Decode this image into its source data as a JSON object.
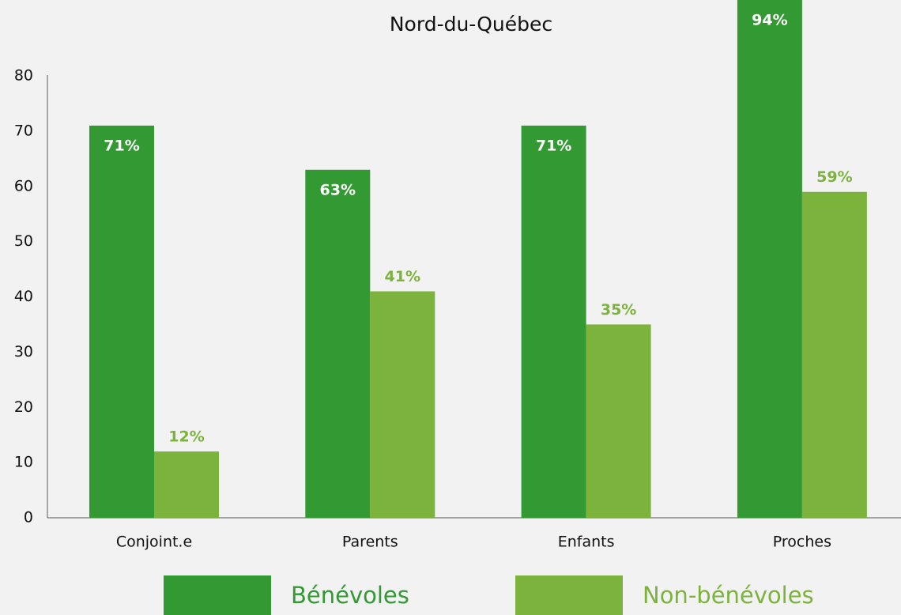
{
  "chart_data": {
    "type": "bar",
    "title": "Nord-du-Québec",
    "categories": [
      "Conjoint.e",
      "Parents",
      "Enfants",
      "Proches"
    ],
    "series": [
      {
        "name": "Bénévoles",
        "color": "#339933",
        "values": [
          71,
          63,
          71,
          94
        ],
        "value_labels": [
          "71%",
          "63%",
          "71%",
          "94%"
        ]
      },
      {
        "name": "Non-bénévoles",
        "color": "#7cb33d",
        "values": [
          12,
          41,
          35,
          59
        ],
        "value_labels": [
          "12%",
          "41%",
          "35%",
          "59%"
        ]
      }
    ],
    "ylim": [
      0,
      80
    ],
    "yticks": [
      0,
      10,
      20,
      30,
      40,
      50,
      60,
      70,
      80
    ],
    "grid": false,
    "legend": "bottom"
  }
}
